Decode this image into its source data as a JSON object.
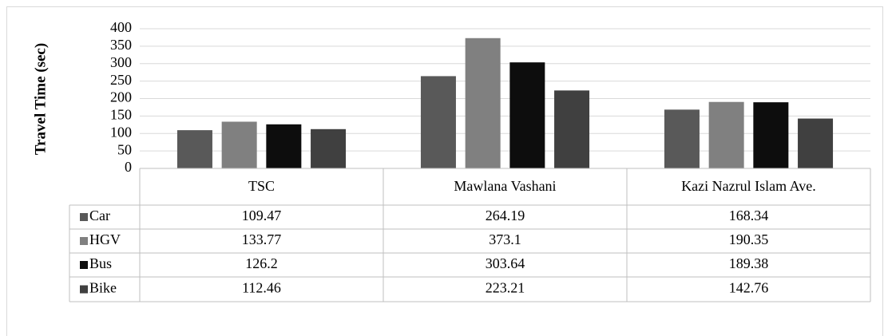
{
  "chart_data": {
    "type": "bar",
    "y_label": "Travel Time (sec)",
    "categories": [
      "TSC",
      "Mawlana Vashani",
      "Kazi Nazrul Islam Ave."
    ],
    "series": [
      {
        "name": "Car",
        "color": "#595959",
        "values": [
          109.47,
          264.19,
          168.34
        ]
      },
      {
        "name": "HGV",
        "color": "#808080",
        "values": [
          133.77,
          373.1,
          190.35
        ]
      },
      {
        "name": "Bus",
        "color": "#0d0d0d",
        "values": [
          126.2,
          303.64,
          189.38
        ]
      },
      {
        "name": "Bike",
        "color": "#404040",
        "values": [
          112.46,
          223.21,
          142.76
        ]
      }
    ],
    "ylim": [
      0,
      400
    ],
    "yticks": [
      0,
      50,
      100,
      150,
      200,
      250,
      300,
      350,
      400
    ],
    "grid": true
  }
}
